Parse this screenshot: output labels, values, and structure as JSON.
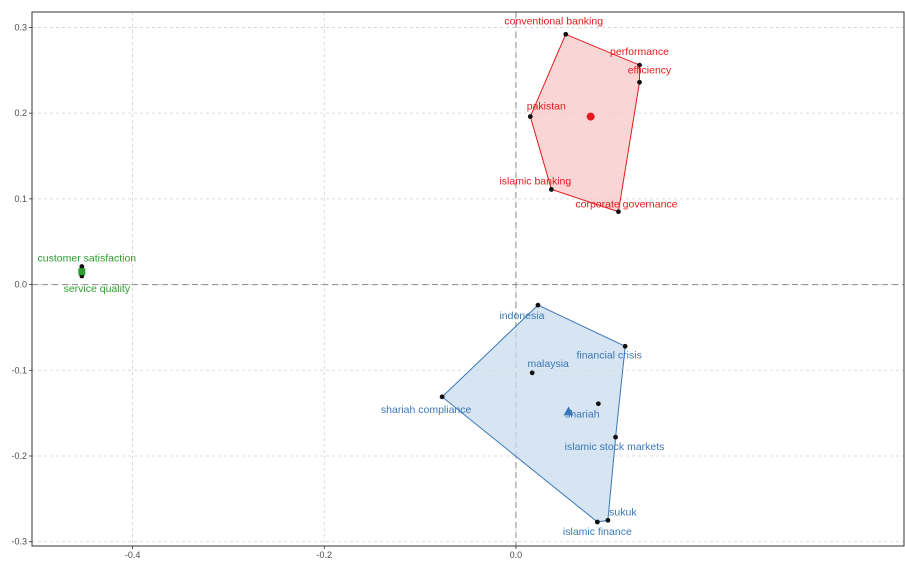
{
  "chart_data": {
    "type": "scatter",
    "title": "",
    "xlabel": "",
    "ylabel": "",
    "xlim": [
      -0.505,
      0.405
    ],
    "ylim": [
      -0.305,
      0.318
    ],
    "xticks": [
      -0.4,
      -0.2,
      0.0
    ],
    "xtick_labels": [
      "-0.4",
      "-0.2",
      "0.0"
    ],
    "yticks": [
      0.3,
      0.2,
      0.1,
      0.0,
      -0.1,
      -0.2,
      -0.3
    ],
    "ytick_labels": [
      "0.3",
      "0.2",
      "0.1",
      "0.0",
      "-0.1",
      "-0.2",
      "-0.3"
    ],
    "grid": true,
    "reference_lines": {
      "x": 0.0,
      "y": 0.0
    },
    "clusters": [
      {
        "color": "#e41a1c",
        "fill": "#f8c7c8",
        "centroid": {
          "x": 0.078,
          "y": 0.196,
          "marker": "circle"
        },
        "points": [
          {
            "label": "conventional banking",
            "x": 0.052,
            "y": 0.292
          },
          {
            "label": "performance",
            "x": 0.129,
            "y": 0.256
          },
          {
            "label": "efficiency",
            "x": 0.129,
            "y": 0.236
          },
          {
            "label": "pakistan",
            "x": 0.015,
            "y": 0.196
          },
          {
            "label": "islamic banking",
            "x": 0.037,
            "y": 0.111
          },
          {
            "label": "corporate governance",
            "x": 0.107,
            "y": 0.085
          }
        ],
        "hull": [
          "conventional banking",
          "performance",
          "efficiency",
          "corporate governance",
          "islamic banking",
          "pakistan"
        ]
      },
      {
        "color": "#2ca02c",
        "fill": "#b7e3b7",
        "centroid": {
          "x": -0.453,
          "y": 0.015,
          "marker": "square"
        },
        "points": [
          {
            "label": "customer satisfaction",
            "x": -0.453,
            "y": 0.021
          },
          {
            "label": "service quality",
            "x": -0.453,
            "y": 0.01
          }
        ],
        "hull": [
          "customer satisfaction",
          "service quality"
        ]
      },
      {
        "color": "#3a78b7",
        "fill": "#c9dcee",
        "centroid": {
          "x": 0.055,
          "y": -0.148,
          "marker": "triangle"
        },
        "points": [
          {
            "label": "indonesia",
            "x": 0.023,
            "y": -0.024
          },
          {
            "label": "financial crisis",
            "x": 0.114,
            "y": -0.072
          },
          {
            "label": "malaysia",
            "x": 0.017,
            "y": -0.103
          },
          {
            "label": "shariah compliance",
            "x": -0.077,
            "y": -0.131
          },
          {
            "label": "shariah",
            "x": 0.086,
            "y": -0.139
          },
          {
            "label": "islamic stock markets",
            "x": 0.104,
            "y": -0.178
          },
          {
            "label": "sukuk",
            "x": 0.096,
            "y": -0.275
          },
          {
            "label": "islamic finance",
            "x": 0.085,
            "y": -0.277
          }
        ],
        "hull": [
          "indonesia",
          "financial crisis",
          "islamic stock markets",
          "sukuk",
          "islamic finance",
          "shariah compliance"
        ]
      }
    ]
  }
}
